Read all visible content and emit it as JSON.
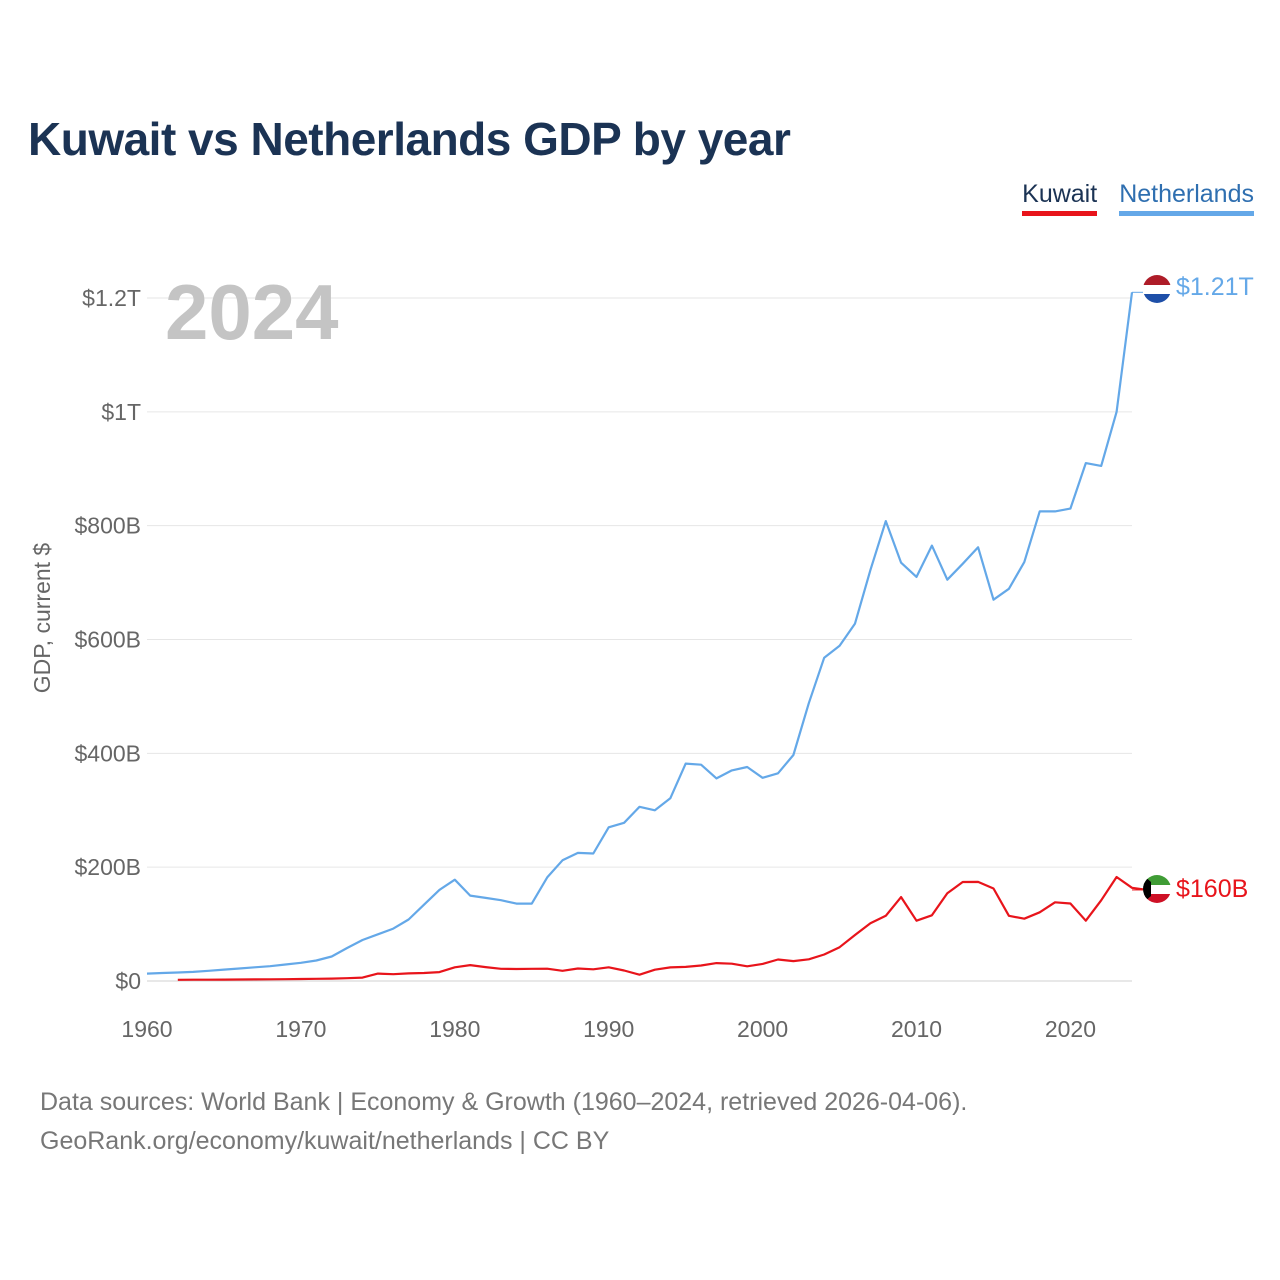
{
  "title": "Kuwait vs Netherlands GDP by year",
  "legend": {
    "kuwait": "Kuwait",
    "netherlands": "Netherlands"
  },
  "year_label": "2024",
  "end_labels": {
    "netherlands": "$1.21T",
    "kuwait": "$160B"
  },
  "footer": {
    "line1": "Data sources: World Bank | Economy & Growth (1960–2024, retrieved 2026-04-06).",
    "line2": "GeoRank.org/economy/kuwait/netherlands | CC BY"
  },
  "colors": {
    "kuwait": "#e8141b",
    "netherlands": "#64a8e8",
    "title": "#1b3354",
    "grid": "#e6e6e6",
    "axis_text": "#666666",
    "year": "#c4c4c4"
  },
  "chart_data": {
    "type": "line",
    "title": "Kuwait vs Netherlands GDP by year",
    "xlabel": "",
    "ylabel": "GDP, current $",
    "xlim": [
      1960,
      2024
    ],
    "ylim": [
      0,
      1200
    ],
    "y_unit": "billions of current US$",
    "x_ticks": [
      1960,
      1970,
      1980,
      1990,
      2000,
      2010,
      2020
    ],
    "x_tick_labels": [
      "1960",
      "1970",
      "1980",
      "1990",
      "2000",
      "2010",
      "2020"
    ],
    "y_ticks": [
      0,
      200,
      400,
      600,
      800,
      1000,
      1200
    ],
    "y_tick_labels": [
      "$0",
      "$200B",
      "$400B",
      "$600B",
      "$800B",
      "$1T",
      "$1.2T"
    ],
    "series": [
      {
        "name": "Netherlands",
        "x_start": 1960,
        "values": [
          13,
          14,
          15,
          16,
          18,
          20,
          22,
          24,
          26,
          29,
          32,
          36,
          43,
          58,
          72,
          82,
          92,
          108,
          134,
          160,
          178,
          150,
          146,
          142,
          136,
          136,
          182,
          212,
          225,
          224,
          270,
          278,
          306,
          300,
          321,
          382,
          380,
          356,
          370,
          376,
          357,
          365,
          397,
          488,
          568,
          589,
          628,
          722,
          808,
          735,
          710,
          765,
          705,
          733,
          762,
          670,
          689,
          736,
          825,
          825,
          830,
          910,
          905,
          1000,
          1210
        ]
      },
      {
        "name": "Kuwait",
        "x_start": 1962,
        "values": [
          2.1,
          2.2,
          2.3,
          2.4,
          2.6,
          2.8,
          3.0,
          3.2,
          3.5,
          3.8,
          4.2,
          5.0,
          6.0,
          13.0,
          12.0,
          13.3,
          14.1,
          15.6,
          24.0,
          28.0,
          24.5,
          21.5,
          21.0,
          21.5,
          21.6,
          18.0,
          22.0,
          20.5,
          24.0,
          18.5,
          11.0,
          19.9,
          23.9,
          24.8,
          27.2,
          31.5,
          30.4,
          25.9,
          30.1,
          37.7,
          34.9,
          38.1,
          46.5,
          59.4,
          80.8,
          101.6,
          114.6,
          147.4,
          106.0,
          115.4,
          154.0,
          174.0,
          174.2,
          162.6,
          114.6,
          109.4,
          120.7,
          138.2,
          136.2,
          105.9,
          141.8,
          182.8,
          163.7,
          160.0
        ]
      }
    ]
  }
}
